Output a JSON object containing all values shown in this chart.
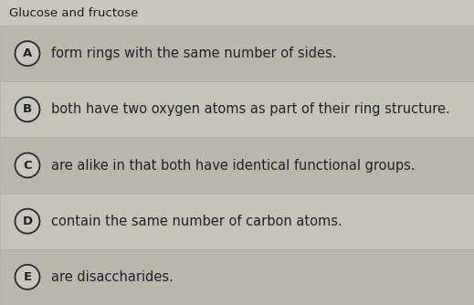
{
  "title": "Glucose and fructose",
  "options": [
    {
      "label": "A",
      "text": "form rings with the same number of sides."
    },
    {
      "label": "B",
      "text": "both have two oxygen atoms as part of their ring structure."
    },
    {
      "label": "C",
      "text": "are alike in that both have identical functional groups."
    },
    {
      "label": "D",
      "text": "contain the same number of carbon atoms."
    },
    {
      "label": "E",
      "text": "are disaccharides."
    }
  ],
  "bg_color": "#c8c8be",
  "row_bg_dark": "#b8b8ac",
  "row_bg_light": "#c4c4b8",
  "title_color": "#1a1a1a",
  "text_color": "#222222",
  "circle_edge_color": "#2a2a2a",
  "circle_face_color": "#c8c8be",
  "title_fontsize": 9.5,
  "option_fontsize": 10.5,
  "label_fontsize": 9.5,
  "fig_width": 5.19,
  "fig_height": 3.34,
  "dpi": 100
}
